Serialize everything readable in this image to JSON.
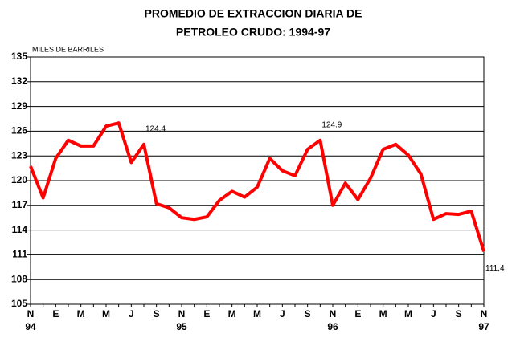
{
  "chart_data": {
    "type": "line",
    "title": [
      "PROMEDIO DE EXTRACCION DIARIA DE",
      "PETROLEO CRUDO: 1994-97"
    ],
    "y_axis_label": "MILES DE BARRILES",
    "categories": [
      "N",
      null,
      "E",
      null,
      "M",
      null,
      "M",
      null,
      "J",
      null,
      "S",
      null,
      "N",
      null,
      "E",
      null,
      "M",
      null,
      "M",
      null,
      "J",
      null,
      "S",
      null,
      "N",
      null,
      "E",
      null,
      "M",
      null,
      "M",
      null,
      "J",
      null,
      "S",
      null,
      "N"
    ],
    "years": [
      "94",
      null,
      null,
      null,
      null,
      null,
      null,
      null,
      null,
      null,
      null,
      null,
      "95",
      null,
      null,
      null,
      null,
      null,
      null,
      null,
      null,
      null,
      null,
      null,
      "96",
      null,
      null,
      null,
      null,
      null,
      null,
      null,
      null,
      null,
      null,
      null,
      "97"
    ],
    "series": [
      {
        "color": "#ff0000",
        "values": [
          121.75,
          117.9,
          122.7,
          124.9,
          124.2,
          124.2,
          126.6,
          127.0,
          122.2,
          124.4,
          117.2,
          116.7,
          115.5,
          115.3,
          115.6,
          117.6,
          118.7,
          118.0,
          119.2,
          122.7,
          121.2,
          120.6,
          123.8,
          124.9,
          117.0,
          119.7,
          117.7,
          120.3,
          123.8,
          124.4,
          123.1,
          120.8,
          115.3,
          116.0,
          115.9,
          116.3,
          111.4
        ],
        "value_labels": [
          null,
          null,
          null,
          null,
          null,
          null,
          null,
          null,
          null,
          "124,4",
          null,
          null,
          null,
          null,
          null,
          null,
          null,
          null,
          null,
          null,
          null,
          null,
          null,
          "124.9",
          null,
          null,
          null,
          null,
          null,
          null,
          null,
          null,
          null,
          null,
          null,
          null,
          "111,4"
        ]
      }
    ],
    "ylim": [
      105,
      135
    ],
    "yticks": [
      105,
      108,
      111,
      114,
      117,
      120,
      123,
      126,
      129,
      132,
      135
    ],
    "grid": true
  }
}
